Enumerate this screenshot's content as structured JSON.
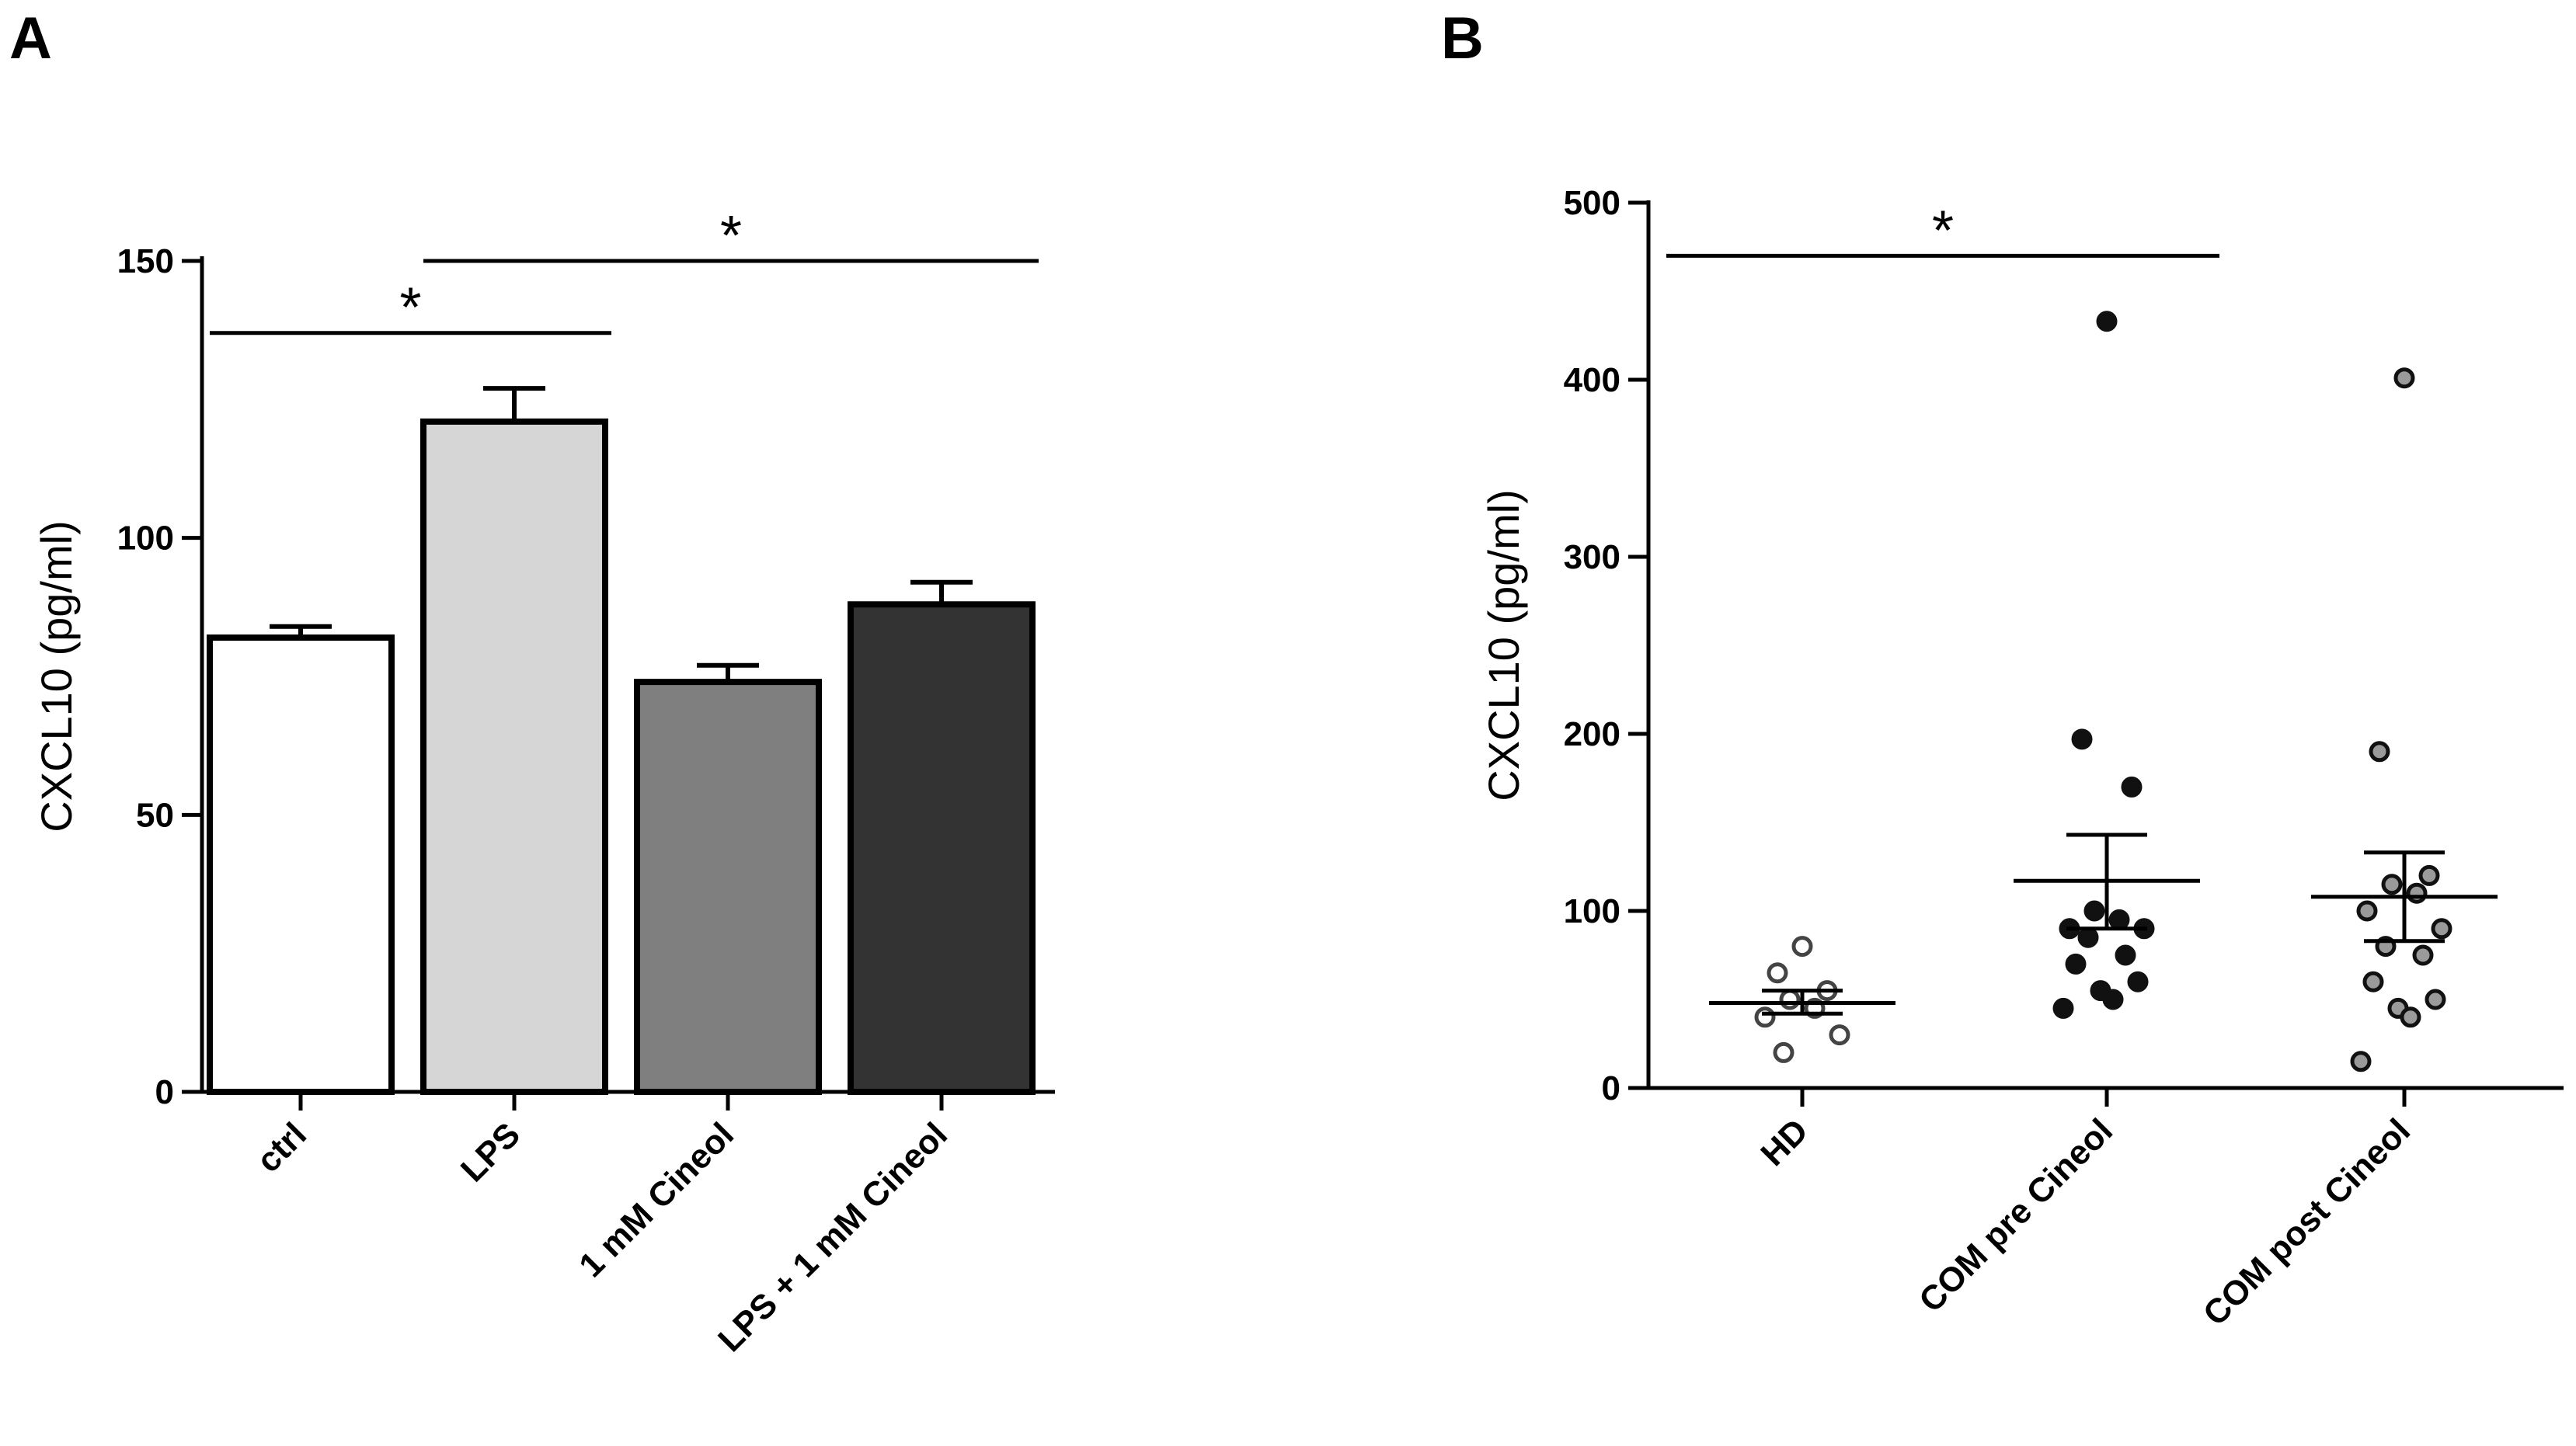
{
  "chart_data": [
    {
      "panel": "A",
      "type": "bar",
      "ylabel": "CXCL10 (pg/ml)",
      "ylim": [
        0,
        150
      ],
      "yticks": [
        0,
        50,
        100,
        150
      ],
      "categories": [
        "ctrl",
        "LPS",
        "1 mM Cineol",
        "LPS + 1 mM Cineol"
      ],
      "values": [
        82,
        121,
        74,
        88
      ],
      "errors": [
        2,
        6,
        3,
        4
      ],
      "colors": [
        "#ffffff",
        "#d6d6d6",
        "#7f7f7f",
        "#333333"
      ],
      "significance": [
        {
          "from": "ctrl",
          "to": "LPS",
          "y": 137,
          "label": "*"
        },
        {
          "from": "LPS",
          "to": "LPS + 1 mM Cineol",
          "y": 150,
          "label": "*"
        }
      ]
    },
    {
      "panel": "B",
      "type": "scatter",
      "ylabel": "CXCL10 (pg/ml)",
      "ylim": [
        0,
        500
      ],
      "yticks": [
        0,
        100,
        200,
        300,
        400,
        500
      ],
      "categories": [
        "HD",
        "COM pre Cineol",
        "COM post Cineol"
      ],
      "series": [
        {
          "values": [
            80,
            65,
            55,
            50,
            45,
            40,
            30,
            20
          ],
          "mean": 48,
          "sem_low": 42,
          "sem_high": 55,
          "marker_fill": "#ffffff",
          "marker_stroke": "#444444"
        },
        {
          "values": [
            433,
            197,
            170,
            100,
            95,
            90,
            90,
            85,
            75,
            70,
            60,
            55,
            50,
            45
          ],
          "mean": 117,
          "sem_low": 90,
          "sem_high": 143,
          "marker_fill": "#111111",
          "marker_stroke": "#111111"
        },
        {
          "values": [
            401,
            190,
            120,
            115,
            110,
            100,
            90,
            80,
            75,
            60,
            50,
            45,
            40,
            15
          ],
          "mean": 108,
          "sem_low": 83,
          "sem_high": 133,
          "marker_fill": "#9a9a9a",
          "marker_stroke": "#111111"
        }
      ],
      "significance": [
        {
          "from": "HD",
          "to": "COM pre Cineol",
          "y": 470,
          "label": "*"
        }
      ]
    }
  ]
}
